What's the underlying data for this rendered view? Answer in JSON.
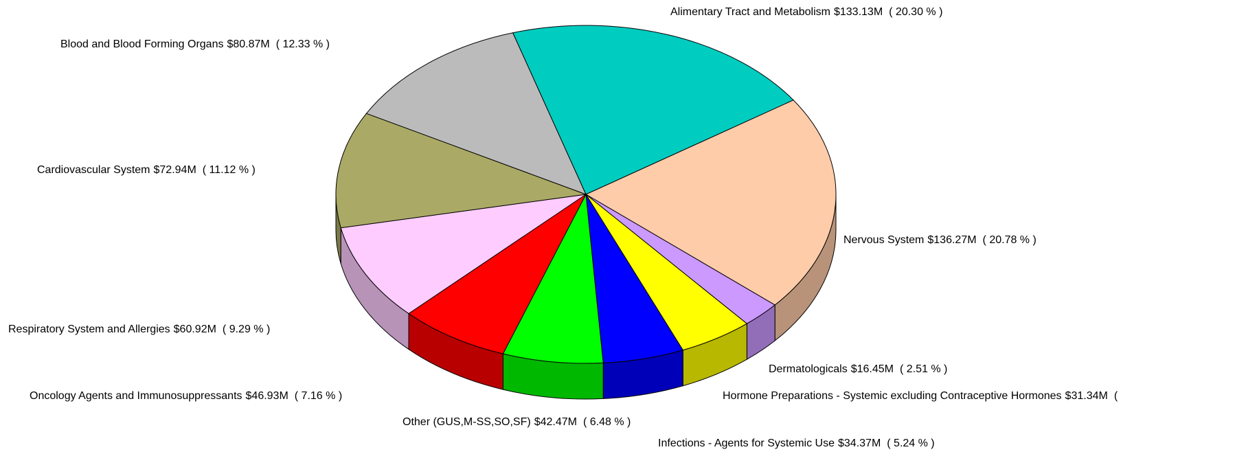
{
  "chart_data": {
    "type": "pie",
    "categories": [
      "Alimentary Tract and Metabolism",
      "Nervous System",
      "Dermatologicals",
      "Hormone Preparations - Systemic excluding Contraceptive Hormones",
      "Infections - Agents for Systemic Use",
      "Other (GUS,M-SS,SO,SF)",
      "Oncology Agents and Immunosuppressants",
      "Respiratory System and Allergies",
      "Cardiovascular System",
      "Blood and Blood Forming Organs"
    ],
    "values": [
      133.13,
      136.27,
      16.45,
      31.34,
      34.37,
      42.47,
      46.93,
      60.92,
      72.94,
      80.87
    ],
    "value_labels": [
      "$133.13M",
      "$136.27M",
      "$16.45M",
      "$31.34M",
      "$34.37M",
      "$42.47M",
      "$46.93M",
      "$60.92M",
      "$72.94M",
      "$80.87M"
    ],
    "percents": [
      20.3,
      20.78,
      2.51,
      4.79,
      5.24,
      6.48,
      7.16,
      9.29,
      11.12,
      12.33
    ],
    "percent_labels": [
      "( 20.30 % )",
      "( 20.78 % )",
      "( 2.51 % )",
      "(",
      "( 5.24 % )",
      "( 6.48 % )",
      "( 7.16 % )",
      "( 9.29 % )",
      "( 11.12 % )",
      "( 12.33 % )"
    ],
    "colors": [
      "#00ccc0",
      "#ffccaa",
      "#cc99ff",
      "#ffff00",
      "#0000ff",
      "#00ff00",
      "#ff0000",
      "#ffccff",
      "#aaaa66",
      "#bbbbbb"
    ]
  }
}
